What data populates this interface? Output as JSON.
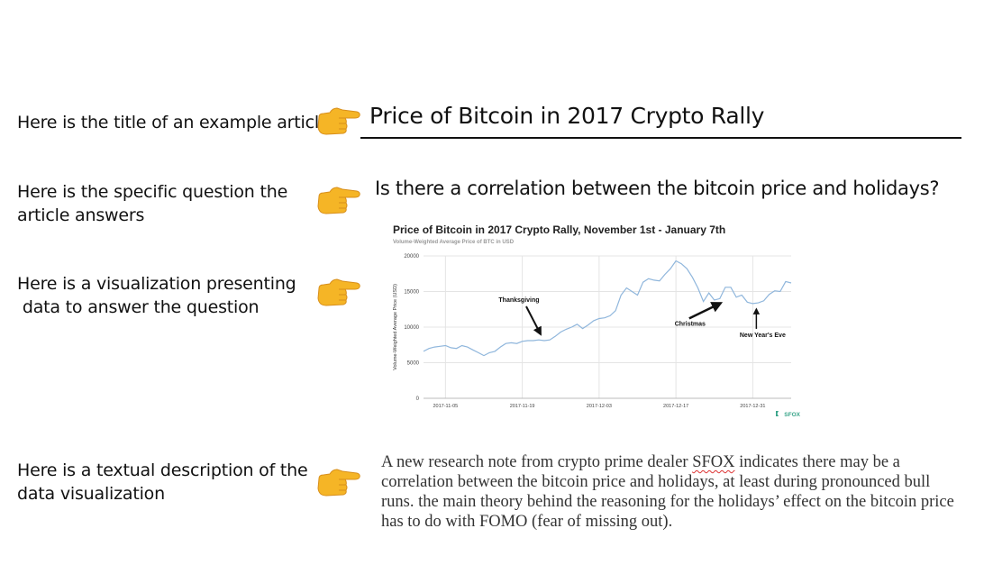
{
  "labels": {
    "title": "Here is the title of an example  article",
    "question_1": "Here is the specific question the",
    "question_2": "article answers",
    "viz_1": "Here is a visualization presenting",
    "viz_2": " data to answer the question",
    "desc_1": "Here is a textual description of the",
    "desc_2": "data visualization"
  },
  "article": {
    "title": "Price of Bitcoin in 2017 Crypto Rally",
    "question": "Is there a correlation between the bitcoin price and holidays?",
    "description": {
      "before_link": "A new research note from crypto prime dealer ",
      "link": "SFOX",
      "after_link": " indicates there may be a correlation between the bitcoin price and holidays, at least during pronounced bull runs. the main theory behind the reasoning for the holidays’ effect on the bitcoin price has to do with FOMO (fear of missing out)."
    }
  },
  "icons": {
    "hand": "backhand-index-pointing-right-icon",
    "hand_color": "#f5b526"
  },
  "chart_data": {
    "type": "line",
    "title": "Price of Bitcoin in 2017 Crypto Rally, November 1st - January 7th",
    "subtitle": "Volume-Weighted Average Price of BTC in USD",
    "xlabel": "",
    "ylabel": "Volume-Weighted Average Price (USD)",
    "ylim": [
      0,
      20000
    ],
    "yticks": [
      0,
      5000,
      10000,
      15000,
      20000
    ],
    "ytick_labels": [
      "0",
      "5000",
      "10000",
      "15000",
      "20000"
    ],
    "xticks": [
      "2017-11-05",
      "2017-11-19",
      "2017-12-03",
      "2017-12-17",
      "2017-12-31"
    ],
    "grid": true,
    "line_color": "#8fb6dc",
    "watermark": "SFOX",
    "series": [
      {
        "x": [
          "2017-11-01",
          "2017-11-02",
          "2017-11-03",
          "2017-11-04",
          "2017-11-05",
          "2017-11-06",
          "2017-11-07",
          "2017-11-08",
          "2017-11-09",
          "2017-11-10",
          "2017-11-11",
          "2017-11-12",
          "2017-11-13",
          "2017-11-14",
          "2017-11-15",
          "2017-11-16",
          "2017-11-17",
          "2017-11-18",
          "2017-11-19",
          "2017-11-20",
          "2017-11-21",
          "2017-11-22",
          "2017-11-23",
          "2017-11-24",
          "2017-11-25",
          "2017-11-26",
          "2017-11-27",
          "2017-11-28",
          "2017-11-29",
          "2017-11-30",
          "2017-12-01",
          "2017-12-02",
          "2017-12-03",
          "2017-12-04",
          "2017-12-05",
          "2017-12-06",
          "2017-12-07",
          "2017-12-08",
          "2017-12-09",
          "2017-12-10",
          "2017-12-11",
          "2017-12-12",
          "2017-12-13",
          "2017-12-14",
          "2017-12-15",
          "2017-12-16",
          "2017-12-17",
          "2017-12-18",
          "2017-12-19",
          "2017-12-20",
          "2017-12-21",
          "2017-12-22",
          "2017-12-23",
          "2017-12-24",
          "2017-12-25",
          "2017-12-26",
          "2017-12-27",
          "2017-12-28",
          "2017-12-29",
          "2017-12-30",
          "2017-12-31",
          "2018-01-01",
          "2018-01-02",
          "2018-01-03",
          "2018-01-04",
          "2018-01-05",
          "2018-01-06",
          "2018-01-07"
        ],
        "values": [
          6600,
          7000,
          7200,
          7300,
          7400,
          7100,
          7000,
          7400,
          7200,
          6800,
          6400,
          6000,
          6400,
          6600,
          7200,
          7700,
          7800,
          7700,
          8000,
          8100,
          8100,
          8200,
          8100,
          8200,
          8700,
          9300,
          9700,
          10000,
          10400,
          9800,
          10300,
          10900,
          11200,
          11300,
          11600,
          12300,
          14500,
          15500,
          15000,
          14500,
          16300,
          16800,
          16600,
          16500,
          17400,
          18200,
          19300,
          18900,
          18200,
          17000,
          15500,
          13600,
          14800,
          13800,
          14000,
          15600,
          15600,
          14200,
          14500,
          13500,
          13300,
          13400,
          13700,
          14600,
          15100,
          15000,
          16400,
          16200
        ]
      }
    ],
    "annotations": [
      {
        "text": "Thanksgiving",
        "x": "2017-11-23"
      },
      {
        "text": "Christmas",
        "x": "2017-12-25"
      },
      {
        "text": "New Year's Eve",
        "x": "2017-12-31"
      }
    ]
  }
}
